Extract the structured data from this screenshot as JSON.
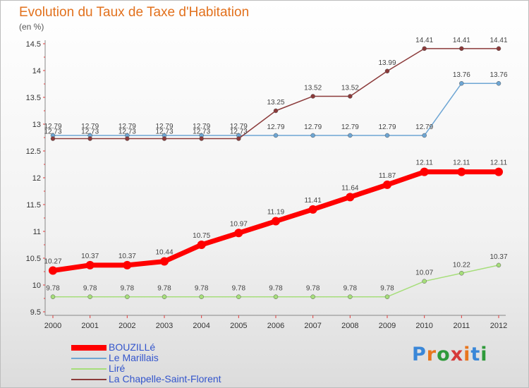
{
  "chart_data": {
    "type": "line",
    "title": "Evolution du Taux de Taxe d'Habitation",
    "unit_label": "(en %)",
    "xlabel": "",
    "ylabel": "",
    "x": [
      "2000",
      "2001",
      "2002",
      "2003",
      "2004",
      "2005",
      "2006",
      "2007",
      "2008",
      "2009",
      "2010",
      "2011",
      "2012"
    ],
    "ylim": [
      9.5,
      14.5
    ],
    "yticks": [
      "9.5",
      "10",
      "10.5",
      "11",
      "11.5",
      "12",
      "12.5",
      "13",
      "13.5",
      "14",
      "14.5"
    ],
    "grid": false,
    "legend_position": "bottom-left",
    "series": [
      {
        "name": "BOUZILLé",
        "color": "#ff0000",
        "values": [
          10.27,
          10.37,
          10.37,
          10.44,
          10.75,
          10.97,
          11.19,
          11.41,
          11.64,
          11.87,
          12.11,
          12.11,
          12.11
        ],
        "labels": [
          "10.27",
          "10.37",
          "10.37",
          "10.44",
          "10.75",
          "10.97",
          "11.19",
          "11.41",
          "11.64",
          "11.87",
          "12.11",
          "12.11",
          "12.11"
        ]
      },
      {
        "name": "Le Marillais",
        "color": "#6ea6d4",
        "values": [
          12.79,
          12.79,
          12.79,
          12.79,
          12.79,
          12.79,
          12.79,
          12.79,
          12.79,
          12.79,
          12.79,
          13.76,
          13.76
        ],
        "labels": [
          "12.79",
          "12.79",
          "12.79",
          "12.79",
          "12.79",
          "12.79",
          "12.79",
          "12.79",
          "12.79",
          "12.79",
          "12.79",
          "13.76",
          "13.76"
        ]
      },
      {
        "name": "Liré",
        "color": "#a6de7a",
        "values": [
          9.78,
          9.78,
          9.78,
          9.78,
          9.78,
          9.78,
          9.78,
          9.78,
          9.78,
          9.78,
          10.07,
          10.22,
          10.37
        ],
        "labels": [
          "9.78",
          "9.78",
          "9.78",
          "9.78",
          "9.78",
          "9.78",
          "9.78",
          "9.78",
          "9.78",
          "9.78",
          "10.07",
          "10.22",
          "10.37"
        ]
      },
      {
        "name": "La Chapelle-Saint-Florent",
        "color": "#8b3a3a",
        "values": [
          12.73,
          12.73,
          12.73,
          12.73,
          12.73,
          12.73,
          13.25,
          13.52,
          13.52,
          13.99,
          14.41,
          14.41,
          14.41
        ],
        "labels": [
          "12.73",
          "12.73",
          "12.73",
          "12.73",
          "12.73",
          "12.73",
          "13.25",
          "13.52",
          "13.52",
          "13.99",
          "14.41",
          "14.41",
          "14.41"
        ]
      }
    ]
  },
  "logo": {
    "text": "Proxiti",
    "colors": [
      "#3a87d8",
      "#e8761e",
      "#2f9a3a",
      "#d63a3a",
      "#e8761e",
      "#3a87d8",
      "#2f9a3a"
    ]
  }
}
